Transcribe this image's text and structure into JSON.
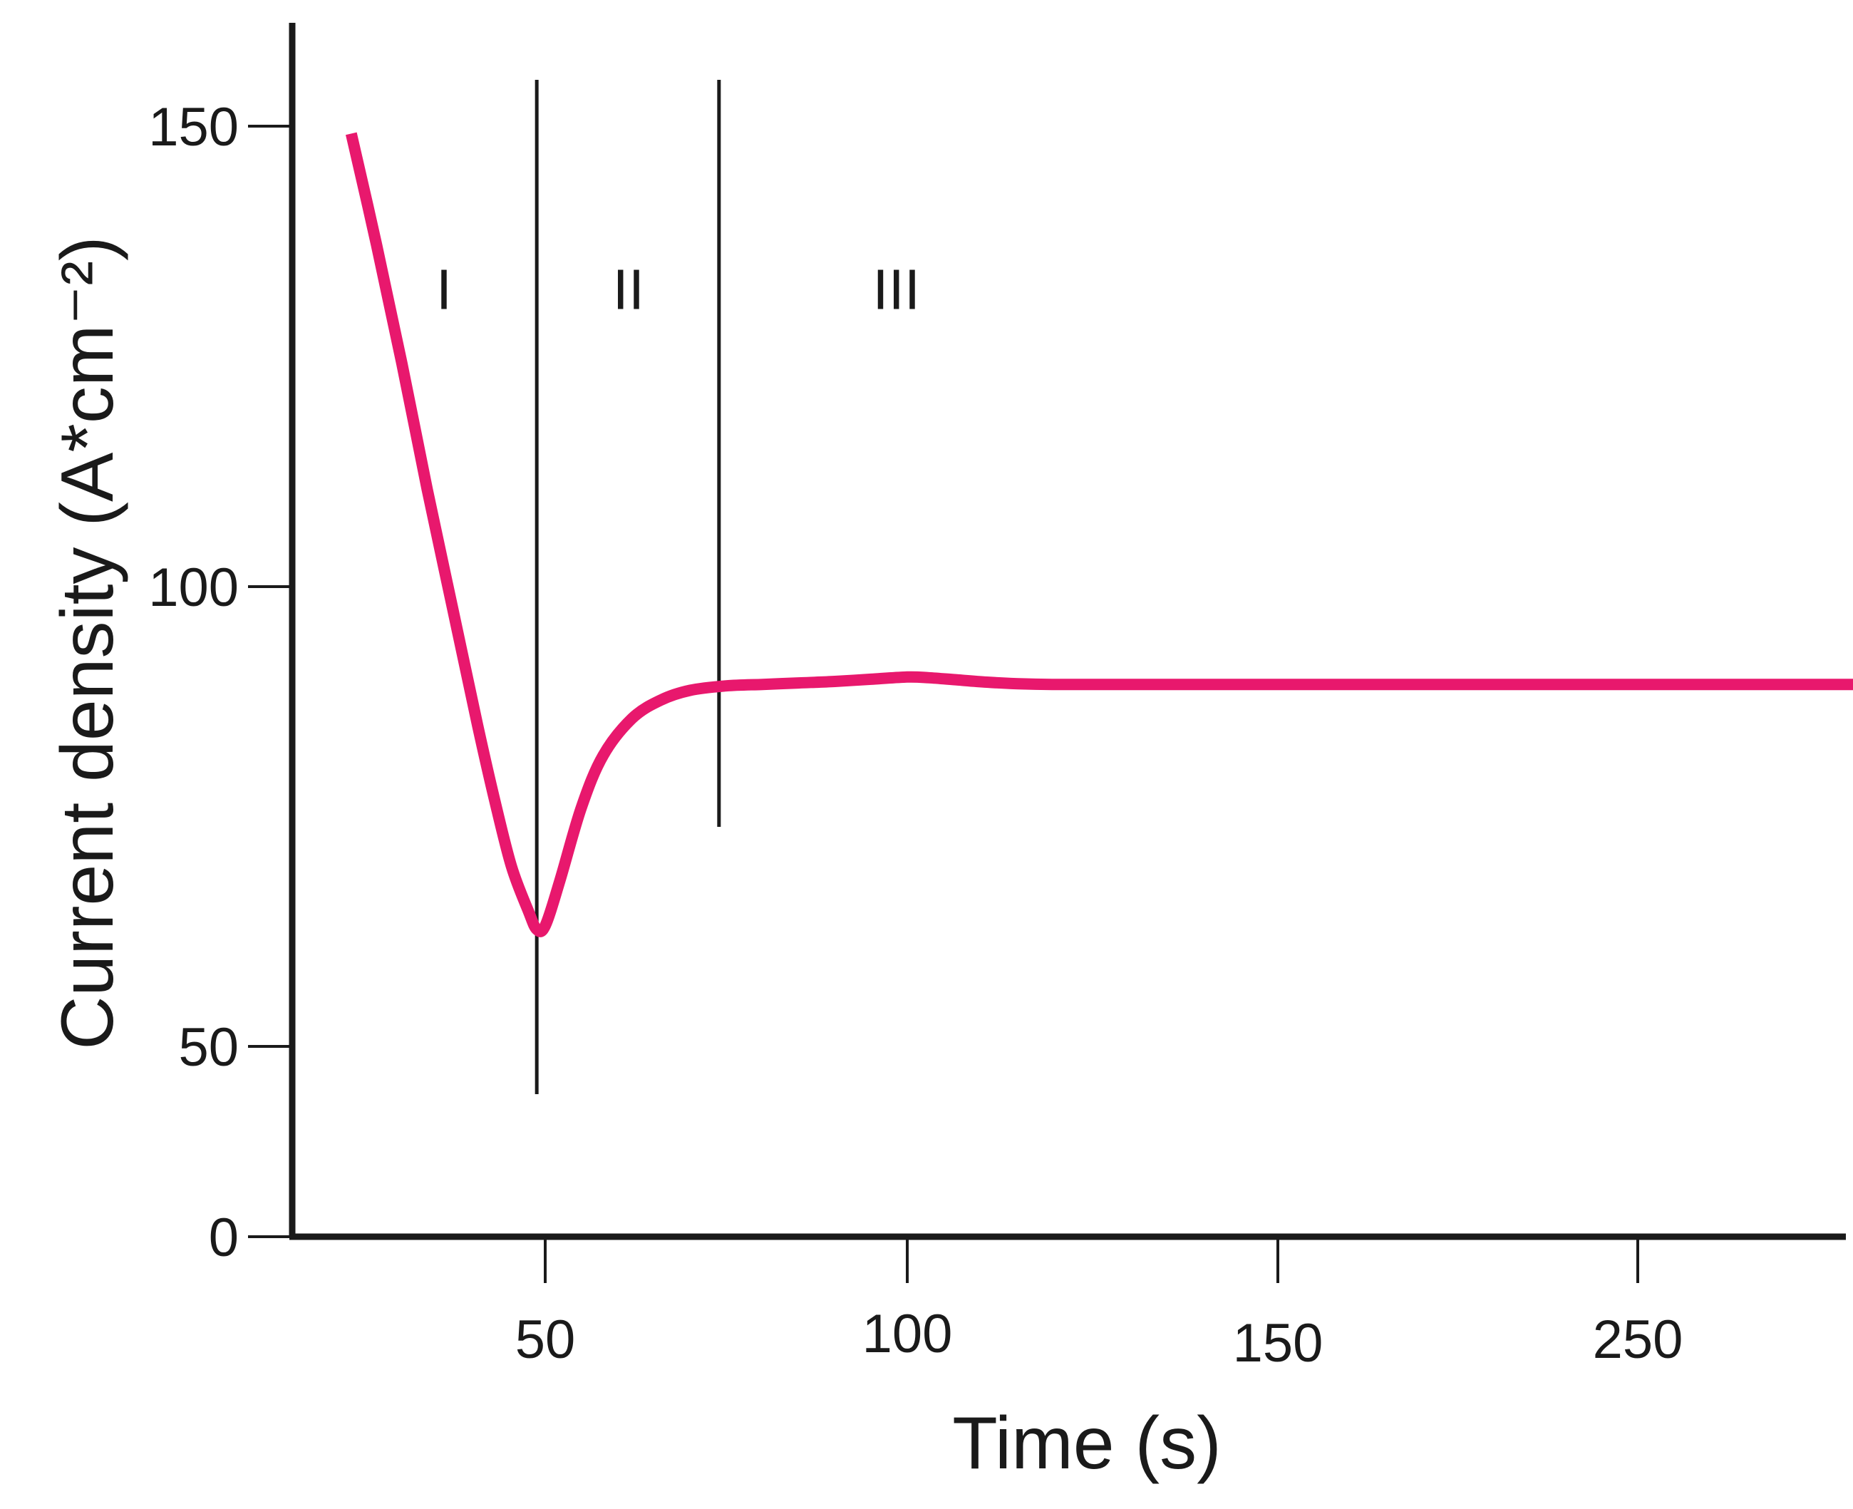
{
  "chart_data": {
    "type": "line",
    "title": "",
    "xlabel": "Time (s)",
    "ylabel": "Current density (A*cm⁻²)",
    "x_ticks": [
      "50",
      "100",
      "150",
      "250"
    ],
    "y_ticks": [
      "0",
      "50",
      "100",
      "150"
    ],
    "ylim": [
      0,
      160
    ],
    "grid": false,
    "legend": "none",
    "series": [
      {
        "color": "#e8186d",
        "x": [
          27,
          30,
          33,
          36,
          39,
          42,
          44,
          46,
          48,
          49,
          50,
          52,
          55,
          58,
          62,
          66,
          70,
          75,
          80,
          85,
          90,
          95,
          100,
          103,
          107,
          111,
          115,
          120,
          130,
          145,
          160,
          180,
          200,
          220,
          240,
          259
        ],
        "y": [
          149,
          134,
          118,
          101,
          85,
          69,
          59,
          50,
          44,
          41.5,
          42,
          48,
          58,
          65,
          70,
          72.5,
          73.8,
          74.4,
          74.6,
          74.8,
          75,
          75.3,
          75.6,
          75.5,
          75.2,
          74.9,
          74.7,
          74.6,
          74.6,
          74.6,
          74.6,
          74.6,
          74.6,
          74.6,
          74.6,
          74.6
        ]
      }
    ],
    "phase_boundaries": [
      49,
      74
    ],
    "regions": [
      {
        "label": "I",
        "x": 38,
        "y": 128
      },
      {
        "label": "II",
        "x": 61.5,
        "y": 128
      },
      {
        "label": "III",
        "x": 98.5,
        "y": 128
      }
    ]
  }
}
